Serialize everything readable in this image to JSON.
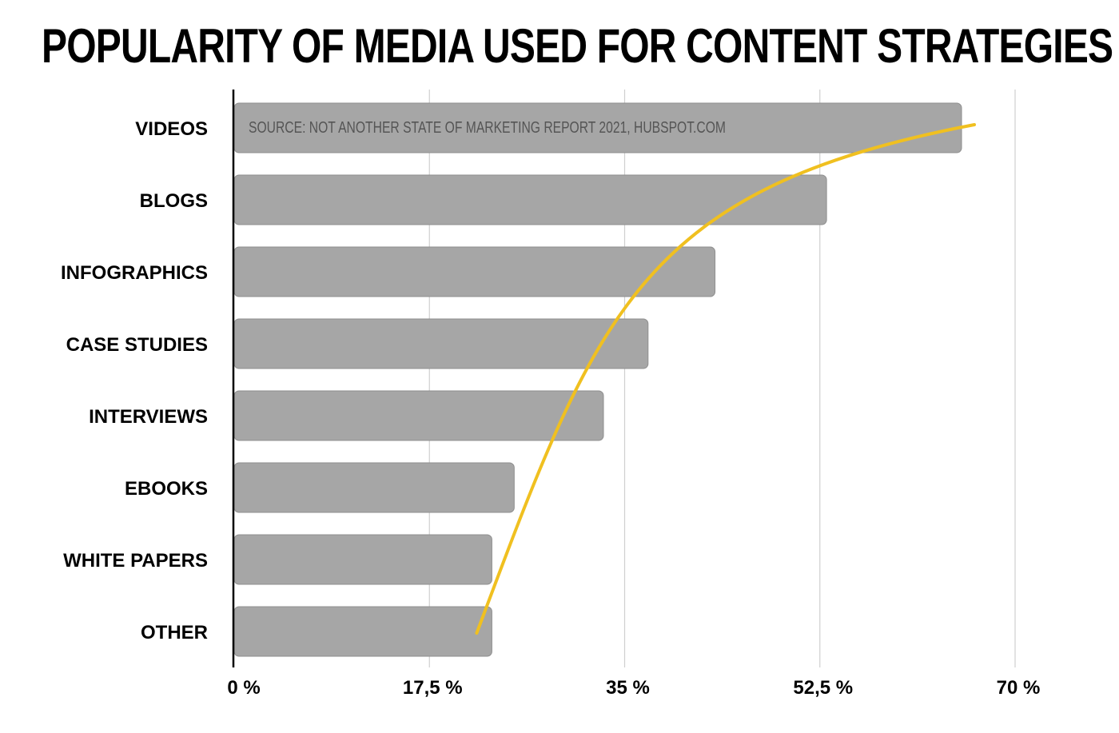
{
  "title": "POPULARITY OF MEDIA USED FOR CONTENT STRATEGIES",
  "source_note": "SOURCE: NOT ANOTHER STATE OF MARKETING REPORT 2021, HUBSPOT.COM",
  "colors": {
    "bar": "#a6a6a6",
    "bar_border": "#8f8f8f",
    "trend_line": "#f0c020",
    "grid": "#cfcfcf",
    "axis": "#000000"
  },
  "chart_data": {
    "type": "bar",
    "orientation": "horizontal",
    "categories": [
      "VIDEOS",
      "BLOGS",
      "INFOGRAPHICS",
      "CASE STUDIES",
      "INTERVIEWS",
      "EBOOKS",
      "WHITE PAPERS",
      "OTHER"
    ],
    "values": [
      65.2,
      53.1,
      43.1,
      37.1,
      33.1,
      25.1,
      23.1,
      23.1
    ],
    "xlim": [
      0,
      70
    ],
    "x_ticks": [
      0,
      17.5,
      35,
      52.5,
      70
    ],
    "x_tick_labels": [
      "0 %",
      "17,5 %",
      "35 %",
      "52,5 %",
      "70 %"
    ],
    "grid": "vertical",
    "trend_line": {
      "shape": "curve",
      "color": "yellow",
      "from_category": "OTHER",
      "to_category": "VIDEOS"
    }
  }
}
